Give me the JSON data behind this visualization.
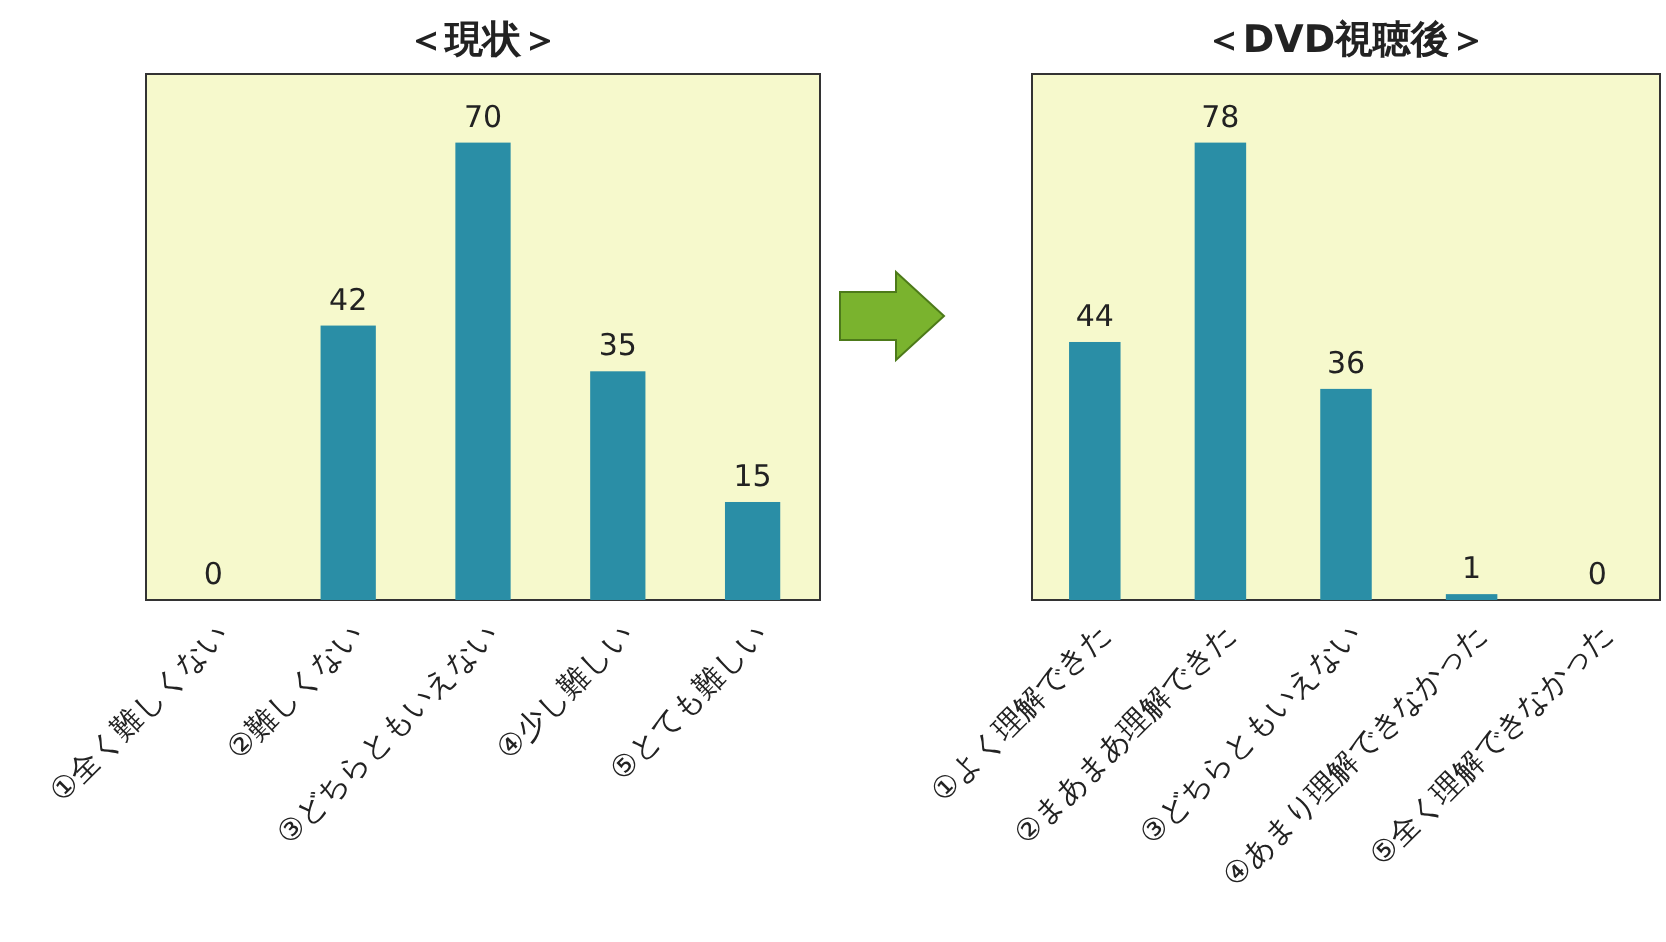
{
  "chart_data": [
    {
      "type": "bar",
      "title": "＜現状＞",
      "categories": [
        "①全く難しくない",
        "②難しくない",
        "③どちらともいえない",
        "④少し難しい",
        "⑤とても難しい"
      ],
      "values": [
        0,
        42,
        70,
        35,
        15
      ],
      "color": "#2a8ea6",
      "data_labels": true
    },
    {
      "type": "bar",
      "title": "＜DVD視聴後＞",
      "categories": [
        "①よく理解できた",
        "②まあまあ理解できた",
        "③どちらともいえない",
        "④あまり理解できなかった",
        "⑤全く理解できなかった"
      ],
      "values": [
        44,
        78,
        36,
        1,
        0
      ],
      "color": "#2a8ea6",
      "data_labels": true
    }
  ]
}
